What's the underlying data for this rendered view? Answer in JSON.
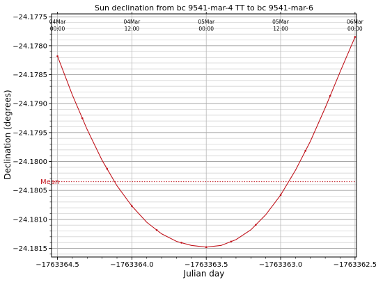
{
  "chart_data": {
    "type": "line",
    "title": "Sun declination from bc 9541-mar-4 TT to bc 9541-mar-6",
    "xlabel": "Julian day",
    "ylabel": "Declination (degrees)",
    "xlim": [
      -1763364.54,
      -1763362.49
    ],
    "ylim": [
      -24.18165,
      -24.17745
    ],
    "x_ticks": [
      -1763364.5,
      -1763364.0,
      -1763363.5,
      -1763363.0,
      -1763362.5
    ],
    "x_tick_labels": [
      "−1763364.5",
      "−1763364.0",
      "−1763363.5",
      "−1763363.0",
      "−1763362.5"
    ],
    "y_ticks": [
      -24.1815,
      -24.181,
      -24.1805,
      -24.18,
      -24.1795,
      -24.179,
      -24.1785,
      -24.178,
      -24.1775
    ],
    "y_tick_labels": [
      "−24.1815",
      "−24.1810",
      "−24.1805",
      "−24.1800",
      "−24.1795",
      "−24.1790",
      "−24.1785",
      "−24.1780",
      "−24.1775"
    ],
    "top_axis": [
      {
        "x": -1763364.5,
        "line1": "04Mar",
        "line2": "00:00"
      },
      {
        "x": -1763364.0,
        "line1": "04Mar",
        "line2": "12:00"
      },
      {
        "x": -1763363.5,
        "line1": "05Mar",
        "line2": "00:00"
      },
      {
        "x": -1763363.0,
        "line1": "05Mar",
        "line2": "12:00"
      },
      {
        "x": -1763362.5,
        "line1": "06Mar",
        "line2": "00:00"
      }
    ],
    "grid": true,
    "series": [
      {
        "color": "#c0141c",
        "x": [
          -1763364.5,
          -1763364.4,
          -1763364.3,
          -1763364.2,
          -1763364.1,
          -1763364.0,
          -1763363.9,
          -1763363.8,
          -1763363.7,
          -1763363.6,
          -1763363.5,
          -1763363.4,
          -1763363.3,
          -1763363.2,
          -1763363.1,
          -1763363.0,
          -1763362.9,
          -1763362.8,
          -1763362.7,
          -1763362.6,
          -1763362.5
        ],
        "y": [
          -24.17818,
          -24.17885,
          -24.17945,
          -24.17998,
          -24.18042,
          -24.18077,
          -24.18105,
          -24.18125,
          -24.18138,
          -24.18145,
          -24.18148,
          -24.18145,
          -24.18135,
          -24.18118,
          -24.18092,
          -24.18058,
          -24.18015,
          -24.17965,
          -24.17907,
          -24.17845,
          -24.17785
        ]
      }
    ],
    "markers_x": [
      -1763364.5,
      -1763364.333,
      -1763364.167,
      -1763364.0,
      -1763363.833,
      -1763363.667,
      -1763363.5,
      -1763363.333,
      -1763363.167,
      -1763363.0,
      -1763362.833,
      -1763362.667,
      -1763362.5
    ],
    "mean": {
      "label": "Mean",
      "value": -24.18035,
      "color": "#c0141c"
    }
  }
}
